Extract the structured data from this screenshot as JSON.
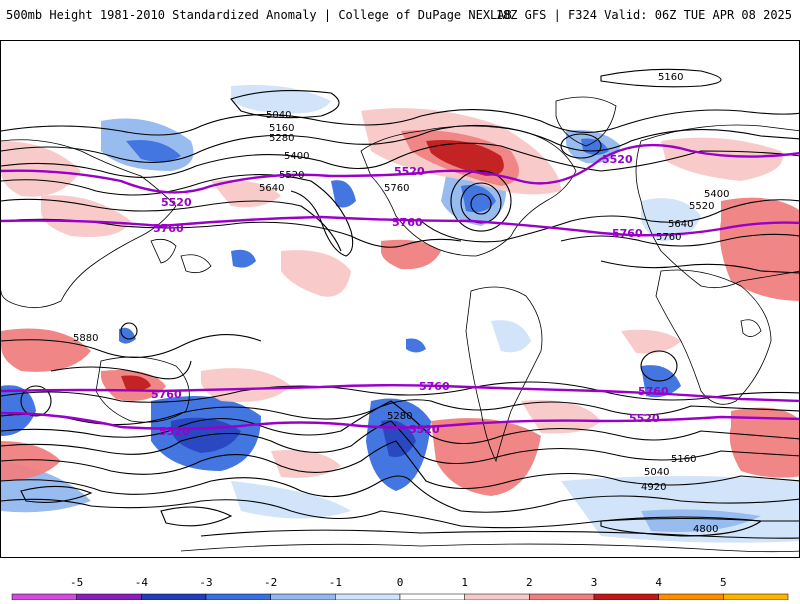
{
  "header": {
    "title": "500mb Height 1981-2010 Standardized Anomaly | College of DuPage NEXLAB",
    "run_info": "18Z GFS | F324 Valid: 06Z TUE APR 08 2025"
  },
  "colors": {
    "height_contour": "#000000",
    "highlight_contour": "#9a00c8",
    "coastline": "#000000"
  },
  "contour_labels": [
    "5160",
    "5040",
    "5160",
    "5280",
    "5400",
    "5520",
    "5640",
    "5760",
    "5880",
    "5400",
    "5520",
    "5640",
    "5760",
    "5280",
    "5160",
    "5040",
    "4920",
    "4800"
  ],
  "highlight_labels": [
    "5520",
    "5760"
  ],
  "colorbar": {
    "ticks": [
      "-5",
      "-4",
      "-3",
      "-2",
      "-1",
      "0",
      "1",
      "2",
      "3",
      "4",
      "5"
    ],
    "colors": [
      "#d24be0",
      "#8a1fbf",
      "#1f3fbf",
      "#3a6fe0",
      "#93b8f0",
      "#cfe3fa",
      "#ffffff",
      "#f8c8c8",
      "#f08080",
      "#c01818",
      "#ff8c00",
      "#ffb400"
    ]
  }
}
